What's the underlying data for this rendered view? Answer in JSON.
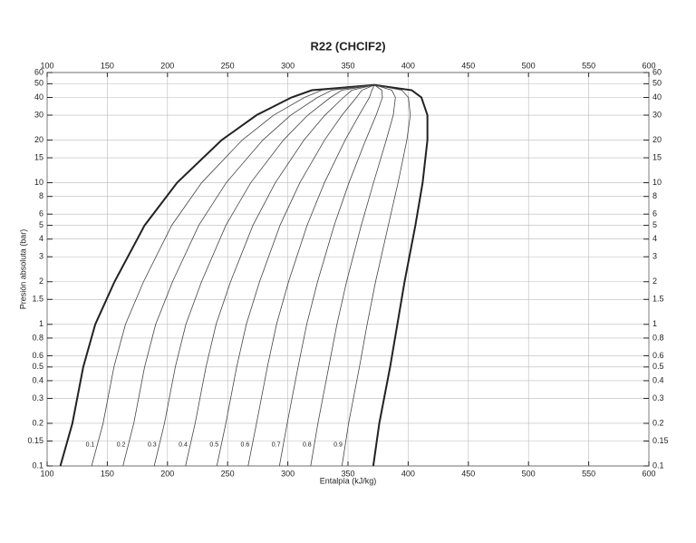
{
  "chart_data": {
    "type": "line",
    "title": "R22 (CHClF2)",
    "x_label": "Entalpía (kJ/kg)",
    "y_label": "Presión absoluta (bar)",
    "xlim": [
      100,
      600
    ],
    "ylim": [
      0.1,
      60
    ],
    "y_scale": "log",
    "grid": true,
    "xticks": [
      100,
      150,
      200,
      250,
      300,
      350,
      400,
      450,
      500,
      550,
      600
    ],
    "yticks": [
      0.1,
      0.15,
      0.2,
      0.3,
      0.4,
      0.5,
      0.6,
      0.8,
      1,
      1.5,
      2,
      3,
      4,
      5,
      6,
      8,
      10,
      15,
      20,
      30,
      40,
      50,
      60
    ],
    "series": [
      {
        "color": "#222222",
        "x": [
          111,
          121,
          130,
          140,
          156,
          181,
          208,
          245,
          274,
          303,
          320,
          372
        ],
        "values": [
          0.1,
          0.2,
          0.5,
          1,
          2,
          5,
          10,
          20,
          30,
          40,
          45,
          49
        ]
      },
      {
        "color": "#222222",
        "x": [
          371,
          376,
          385,
          391,
          397,
          406,
          412,
          416,
          416,
          411,
          403,
          372
        ],
        "values": [
          0.1,
          0.2,
          0.5,
          1,
          2,
          5,
          10,
          20,
          30,
          40,
          45,
          49
        ]
      }
    ],
    "qualities": [
      0.1,
      0.2,
      0.3,
      0.4,
      0.5,
      0.6,
      0.7,
      0.8,
      0.9
    ]
  }
}
